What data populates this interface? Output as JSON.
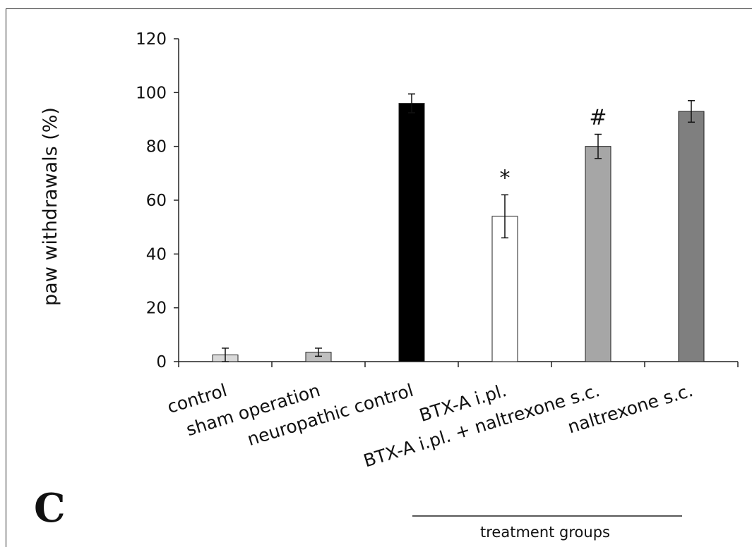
{
  "chart_data": {
    "type": "bar",
    "ylabel": "paw withdrawals (%)",
    "ylim": [
      0,
      120
    ],
    "yticks": [
      "0",
      "20",
      "40",
      "60",
      "80",
      "100",
      "120"
    ],
    "categories": [
      "control",
      "sham operation",
      "neuropathic control",
      "BTX-A i.pl.",
      "BTX-A i.pl. + naltrexone s.c.",
      "naltrexone s.c."
    ],
    "values": [
      2.5,
      3.5,
      96,
      54,
      80,
      93
    ],
    "errors": [
      2.5,
      1.5,
      3.5,
      8,
      4.5,
      4
    ],
    "colors": [
      "#d9d9d9",
      "#bfbfbf",
      "#000000",
      "#ffffff",
      "#a6a6a6",
      "#7f7f7f"
    ],
    "annotations": [
      "",
      "",
      "",
      "*",
      "#",
      ""
    ],
    "grid": false,
    "legend": "none"
  },
  "panel_letter": "C",
  "group_label": "treatment groups"
}
